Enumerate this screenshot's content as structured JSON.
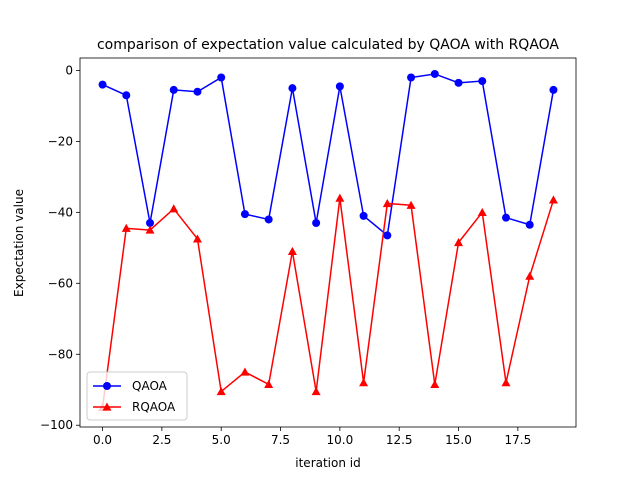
{
  "chart_data": {
    "type": "line",
    "title": "comparison of expectation value calculated by QAOA with RQAOA",
    "xlabel": "iteration id",
    "ylabel": "Expectation value",
    "xlim": [
      -0.95,
      19.95
    ],
    "ylim": [
      -100.5,
      3.5
    ],
    "xticks": [
      0,
      2.5,
      5,
      7.5,
      10,
      12.5,
      15,
      17.5
    ],
    "xtick_labels": [
      "0.0",
      "2.5",
      "5.0",
      "7.5",
      "10.0",
      "12.5",
      "15.0",
      "17.5"
    ],
    "yticks": [
      -100,
      -80,
      -60,
      -40,
      -20,
      0
    ],
    "ytick_labels": [
      "−100",
      "−80",
      "−60",
      "−40",
      "−20",
      "0"
    ],
    "grid": false,
    "legend_position": "lower-left",
    "x": [
      0,
      1,
      2,
      3,
      4,
      5,
      6,
      7,
      8,
      9,
      10,
      11,
      12,
      13,
      14,
      15,
      16,
      17,
      18,
      19
    ],
    "series": [
      {
        "name": "QAOA",
        "color": "#0000ff",
        "marker": "circle",
        "values": [
          -4,
          -7,
          -43,
          -5.5,
          -6,
          -2,
          -40.5,
          -42,
          -5,
          -43,
          -4.5,
          -41,
          -46.5,
          -2,
          -1,
          -3.5,
          -3,
          -41.5,
          -43.5,
          -5.5
        ]
      },
      {
        "name": "RQAOA",
        "color": "#ff0000",
        "marker": "triangle",
        "values": [
          -95,
          -44.5,
          -45,
          -39,
          -47.5,
          -90.5,
          -85,
          -88.5,
          -51,
          -90.5,
          -36,
          -88,
          -37.5,
          -38,
          -88.5,
          -48.5,
          -40,
          -88,
          -58,
          -36.5
        ]
      }
    ]
  }
}
